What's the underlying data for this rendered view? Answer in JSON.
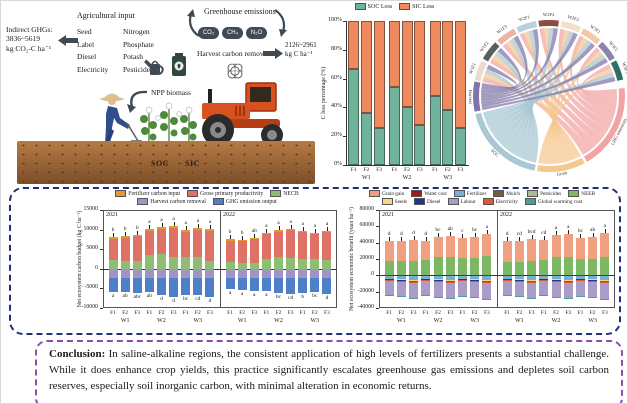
{
  "illustration": {
    "indirect_ghgs": {
      "line1": "Indirect GHGs:",
      "line2": "3836~5619",
      "line3": "kg CO₂-C ha⁻¹"
    },
    "agricultural_input": {
      "title": "Agricultural input",
      "col1": [
        "Seed",
        "Label",
        "Diesel",
        "Electricity"
      ],
      "col2": [
        "Nitrogen",
        "Phosphate",
        "Potash",
        "Pesticide"
      ]
    },
    "greenhouse": {
      "title": "Greenhouse emissions",
      "gases": [
        "CO₂",
        "CH₄",
        "N₂O"
      ]
    },
    "harvest": {
      "label": "Harvest carbon removed",
      "value": "2126~2961",
      "unit": "kg C ha⁻¹"
    },
    "npp_label": "NPP biomass",
    "soil": {
      "soc": "SOC",
      "sic": "SIC"
    }
  },
  "chart_data": [
    {
      "type": "bar",
      "subtype": "stacked-100",
      "panel_label": "(a)",
      "ylabel": "C loss percentage (%)",
      "yticks": [
        0,
        20,
        40,
        60,
        80,
        100
      ],
      "ytick_suffix": "%",
      "groups": [
        "W1",
        "W2",
        "W3"
      ],
      "categories": [
        "F1",
        "F2",
        "F3"
      ],
      "legend": [
        {
          "key": "soc_loss",
          "label": "SOC Loss",
          "color": "#6fb39b"
        },
        {
          "key": "sic_loss",
          "label": "SIC Loss",
          "color": "#ef8a5e"
        }
      ],
      "soc_loss_pct": [
        67,
        36,
        26,
        54,
        40,
        28,
        48,
        38,
        26
      ],
      "sic_loss_pct": [
        33,
        64,
        74,
        46,
        60,
        72,
        52,
        62,
        74
      ]
    },
    {
      "type": "bar",
      "subtype": "stacked-diverging",
      "ylabel": "Net ecosystem carbon budget (kg C ha⁻¹)",
      "ylim": [
        -10000,
        15000
      ],
      "yticks": [
        15000,
        10000,
        5000,
        0,
        -5000,
        -10000
      ],
      "groups": [
        "W1",
        "W2",
        "W3"
      ],
      "categories": [
        "F1",
        "F2",
        "F3"
      ],
      "legend": [
        {
          "key": "fertilizer_carbon_input",
          "label": "Fertilizer carbon input",
          "color": "#e29a2e"
        },
        {
          "key": "gross_primary_productivity",
          "label": "Gross primary productivity",
          "color": "#dd7265"
        },
        {
          "key": "necb",
          "label": "NECB",
          "color": "#8cbf72"
        },
        {
          "key": "harvest_carbon_removal",
          "label": "Harvest carbon removal",
          "color": "#a193c6"
        },
        {
          "key": "ghg_emission_output",
          "label": "GHG emission output",
          "color": "#4f7fc9"
        }
      ],
      "legend_rows": [
        3,
        2
      ],
      "fert_cap": 350,
      "harvest_depth": -2300,
      "panels": [
        {
          "label": "2021",
          "necb": [
            2300,
            2100,
            2000,
            3600,
            3700,
            3100,
            3000,
            3000,
            2100
          ],
          "stack_top": [
            7700,
            7900,
            8300,
            9700,
            10200,
            10500,
            9500,
            10000,
            9700
          ],
          "stack_bottom": [
            -5800,
            -5800,
            -6300,
            -6000,
            -6600,
            -7300,
            -6600,
            -6600,
            -7100
          ],
          "letters_top": [
            "b",
            "b",
            "b",
            "a",
            "a",
            "a",
            "a",
            "a",
            "a"
          ],
          "letters_bottom": [
            "a",
            "ab",
            "abc",
            "ab",
            "d",
            "d",
            "bc",
            "cd",
            "d"
          ]
        },
        {
          "label": "2022",
          "necb": [
            1800,
            1500,
            1600,
            2600,
            2900,
            2700,
            2500,
            2400,
            2300
          ],
          "stack_top": [
            7200,
            7000,
            7500,
            8800,
            9500,
            9800,
            9300,
            8800,
            9400
          ],
          "stack_bottom": [
            -5200,
            -5400,
            -5700,
            -5600,
            -6300,
            -6500,
            -6200,
            -6000,
            -6500
          ],
          "letters_top": [
            "b",
            "b",
            "ab",
            "a",
            "a",
            "a",
            "a",
            "a",
            "a"
          ],
          "letters_bottom": [
            "a",
            "a",
            "a",
            "a",
            "bc",
            "cd",
            "b",
            "bc",
            "d"
          ]
        }
      ]
    },
    {
      "type": "bar",
      "subtype": "stacked-diverging",
      "ylabel": "Net ecosystem economic benefit (yuan ha⁻¹)",
      "ylim": [
        -40000,
        80000
      ],
      "yticks": [
        80000,
        60000,
        40000,
        20000,
        0,
        -20000,
        -40000
      ],
      "groups": [
        "W1",
        "W2",
        "W3"
      ],
      "categories": [
        "F1",
        "F2",
        "F3"
      ],
      "legend": [
        {
          "key": "grain_gain",
          "label": "Grain gain",
          "color": "#f0a080"
        },
        {
          "key": "water_cost",
          "label": "Water cost",
          "color": "#9c1b1b"
        },
        {
          "key": "fertilizer",
          "label": "Fertilizer",
          "color": "#76aed6"
        },
        {
          "key": "mulch",
          "label": "Mulch",
          "color": "#6e5f40"
        },
        {
          "key": "pesticides",
          "label": "Pesticides",
          "color": "#a9bd90"
        },
        {
          "key": "neeb",
          "label": "NEEB",
          "color": "#7cb864"
        },
        {
          "key": "seeds",
          "label": "Seeds",
          "color": "#f4d78a"
        },
        {
          "key": "diesel",
          "label": "Diesel",
          "color": "#27348b"
        },
        {
          "key": "labour",
          "label": "Labour",
          "color": "#a99cc9"
        },
        {
          "key": "electricity",
          "label": "Electricity",
          "color": "#dd5a2d"
        },
        {
          "key": "global_warming_cost",
          "label": "Global warming cost",
          "color": "#4f9d96"
        }
      ],
      "legend_rows": [
        6,
        5
      ],
      "cost_order": [
        "water_cost",
        "fertilizer",
        "seeds",
        "diesel",
        "mulch",
        "pesticides",
        "electricity",
        "labour",
        "global_warming_cost"
      ],
      "panels": [
        {
          "label": "2021",
          "neeb": [
            17500,
            18000,
            17000,
            19000,
            23000,
            22500,
            21000,
            21500,
            24000
          ],
          "grain_top": [
            41500,
            42500,
            43000,
            42000,
            47500,
            48500,
            46000,
            47000,
            51000
          ],
          "costs": {
            "water_cost": 1300,
            "fertilizer": [
              2600,
              3600,
              4600,
              2600,
              3600,
              4600,
              2600,
              3600,
              4600
            ],
            "seeds": 700,
            "diesel": 800,
            "mulch": 500,
            "pesticides": 300,
            "electricity": 900,
            "labour": [
              17000,
              17500,
              18500,
              17500,
              18500,
              19000,
              18000,
              18500,
              19500
            ],
            "global_warming_cost": [
              400,
              700,
              1000,
              500,
              800,
              1100,
              600,
              900,
              1200
            ]
          },
          "letters_top": [
            "d",
            "d",
            "d",
            "d",
            "bc",
            "ab",
            "c",
            "bc",
            "a"
          ]
        },
        {
          "label": "2022",
          "neeb": [
            16500,
            16000,
            17000,
            18500,
            23000,
            22500,
            19500,
            20500,
            22500
          ],
          "grain_top": [
            41500,
            42000,
            44500,
            43500,
            49500,
            50500,
            46000,
            46500,
            51500
          ],
          "costs": {
            "water_cost": 1300,
            "fertilizer": [
              2600,
              3600,
              4600,
              2600,
              3600,
              4600,
              2600,
              3600,
              4600
            ],
            "seeds": 700,
            "diesel": 800,
            "mulch": 500,
            "pesticides": 300,
            "electricity": 900,
            "labour": [
              17000,
              17500,
              18500,
              17500,
              18500,
              19000,
              18000,
              18500,
              19500
            ],
            "global_warming_cost": [
              400,
              700,
              1000,
              500,
              800,
              1100,
              600,
              900,
              1200
            ]
          },
          "letters_top": [
            "d",
            "cd",
            "bcd",
            "cd",
            "a",
            "a",
            "bc",
            "ab",
            "a"
          ]
        }
      ]
    },
    {
      "type": "chord",
      "top_segments": [
        {
          "label": "W1F1",
          "color": "#ecd9cf"
        },
        {
          "label": "W1F2",
          "color": "#5a5f63"
        },
        {
          "label": "W1F3",
          "color": "#eeb3a6"
        },
        {
          "label": "W2F1",
          "color": "#b7d2dc"
        },
        {
          "label": "W2F2",
          "color": "#8e4a44"
        },
        {
          "label": "W2F3",
          "color": "#f2e2c6"
        },
        {
          "label": "W3F1",
          "color": "#f4c9a6"
        },
        {
          "label": "W3F2",
          "color": "#8b84a8"
        },
        {
          "label": "W3F3",
          "color": "#2f6f63"
        }
      ],
      "bottom_segments": [
        {
          "label": "GHG emissions",
          "color": "#f2a3a3"
        },
        {
          "label": "Grain",
          "color": "#f5c890"
        },
        {
          "label": "SOC",
          "color": "#a9c8d4"
        },
        {
          "label": "Harvest",
          "color": "#7f74a6"
        }
      ]
    }
  ],
  "conclusion": {
    "label": "Conclusion:",
    "text": "In saline-alkaline regions, the consistent application of high levels of fertilizers presents a substantial challenge. While it does enhance crop yields, this practice significantly escalates greenhouse gas emissions and depletes soil carbon reserves, especially soil inorganic carbon, with minimal alteration in economic returns."
  }
}
